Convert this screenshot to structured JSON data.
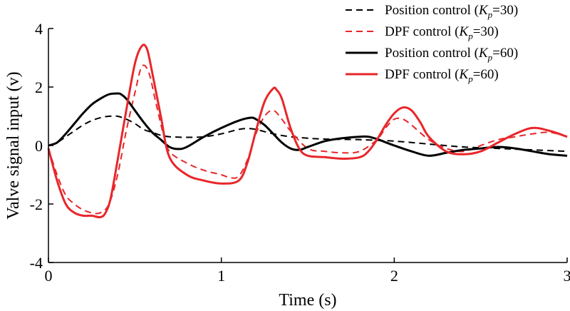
{
  "chart_data": {
    "type": "line",
    "xlabel": "Time (s)",
    "ylabel": "Valve signal input (v)",
    "xlim": [
      0,
      3
    ],
    "ylim": [
      -4,
      4
    ],
    "xticks": [
      "0",
      "1",
      "2",
      "3"
    ],
    "yticks": [
      "-4",
      "-2",
      "0",
      "2",
      "4"
    ],
    "grid": false,
    "legend_position": "top-right",
    "series": [
      {
        "name": "Position control (K_p=30)",
        "legend_parts": [
          "Position control (",
          "K",
          "p",
          "=30)"
        ],
        "color": "#000000",
        "dash": "dashed",
        "x": [
          0,
          0.05,
          0.1,
          0.15,
          0.2,
          0.25,
          0.3,
          0.35,
          0.4,
          0.45,
          0.5,
          0.55,
          0.6,
          0.65,
          0.7,
          0.8,
          0.9,
          1.0,
          1.1,
          1.15,
          1.2,
          1.3,
          1.4,
          1.5,
          1.6,
          1.8,
          2.0,
          2.2,
          2.4,
          2.6,
          2.8,
          3.0
        ],
        "y": [
          0,
          0.1,
          0.3,
          0.5,
          0.7,
          0.85,
          0.95,
          1.0,
          1.0,
          0.9,
          0.75,
          0.55,
          0.45,
          0.35,
          0.3,
          0.28,
          0.3,
          0.4,
          0.55,
          0.58,
          0.55,
          0.4,
          0.3,
          0.25,
          0.22,
          0.2,
          0.15,
          0.05,
          -0.05,
          -0.1,
          -0.15,
          -0.2
        ]
      },
      {
        "name": "DPF control (K_p=30)",
        "legend_parts": [
          "DPF control (",
          "K",
          "p",
          "=30)"
        ],
        "color": "#e8262a",
        "dash": "dashed",
        "x": [
          0,
          0.05,
          0.1,
          0.15,
          0.2,
          0.25,
          0.3,
          0.35,
          0.4,
          0.45,
          0.5,
          0.54,
          0.58,
          0.62,
          0.66,
          0.7,
          0.8,
          0.9,
          1.0,
          1.05,
          1.1,
          1.15,
          1.2,
          1.25,
          1.3,
          1.35,
          1.4,
          1.5,
          1.6,
          1.7,
          1.8,
          1.9,
          1.95,
          2.0,
          2.05,
          2.1,
          2.2,
          2.3,
          2.4,
          2.5,
          2.6,
          2.7,
          2.8,
          2.9,
          3.0
        ],
        "y": [
          -0.1,
          -1.0,
          -1.7,
          -2.0,
          -2.2,
          -2.3,
          -2.3,
          -2.0,
          -1.0,
          0.5,
          1.8,
          2.7,
          2.5,
          1.5,
          0.5,
          -0.2,
          -0.6,
          -0.85,
          -1.0,
          -1.1,
          -1.05,
          -0.5,
          0.4,
          1.0,
          1.2,
          0.9,
          0.5,
          -0.1,
          -0.2,
          -0.25,
          -0.2,
          0.2,
          0.6,
          0.9,
          0.9,
          0.7,
          0.2,
          -0.1,
          -0.2,
          0.0,
          0.2,
          0.3,
          0.4,
          0.45,
          0.3
        ]
      },
      {
        "name": "Position control (K_p=60)",
        "legend_parts": [
          "Position control (",
          "K",
          "p",
          "=60)"
        ],
        "color": "#000000",
        "dash": "solid",
        "x": [
          0,
          0.05,
          0.1,
          0.15,
          0.2,
          0.25,
          0.3,
          0.35,
          0.4,
          0.42,
          0.45,
          0.5,
          0.55,
          0.6,
          0.65,
          0.7,
          0.75,
          0.8,
          0.9,
          1.0,
          1.1,
          1.17,
          1.2,
          1.25,
          1.3,
          1.35,
          1.4,
          1.45,
          1.5,
          1.6,
          1.7,
          1.8,
          1.85,
          1.9,
          2.0,
          2.1,
          2.2,
          2.3,
          2.4,
          2.5,
          2.6,
          2.7,
          2.8,
          2.9,
          3.0
        ],
        "y": [
          0,
          0.1,
          0.4,
          0.75,
          1.1,
          1.4,
          1.6,
          1.75,
          1.78,
          1.75,
          1.6,
          1.2,
          0.8,
          0.45,
          0.2,
          -0.05,
          -0.12,
          -0.05,
          0.3,
          0.6,
          0.85,
          0.95,
          0.9,
          0.7,
          0.4,
          0.1,
          -0.1,
          -0.15,
          -0.05,
          0.15,
          0.25,
          0.3,
          0.3,
          0.22,
          0.0,
          -0.2,
          -0.35,
          -0.25,
          -0.15,
          -0.1,
          -0.05,
          -0.1,
          -0.2,
          -0.3,
          -0.35
        ]
      },
      {
        "name": "DPF control (K_p=60)",
        "legend_parts": [
          "DPF control (",
          "K",
          "p",
          "=60)"
        ],
        "color": "#e8262a",
        "dash": "solid",
        "x": [
          0,
          0.05,
          0.1,
          0.15,
          0.2,
          0.25,
          0.3,
          0.33,
          0.36,
          0.4,
          0.45,
          0.5,
          0.54,
          0.57,
          0.6,
          0.65,
          0.7,
          0.8,
          0.9,
          1.0,
          1.1,
          1.15,
          1.2,
          1.25,
          1.3,
          1.32,
          1.35,
          1.4,
          1.45,
          1.5,
          1.6,
          1.7,
          1.8,
          1.85,
          1.9,
          1.95,
          2.0,
          2.05,
          2.1,
          2.15,
          2.2,
          2.3,
          2.4,
          2.5,
          2.6,
          2.7,
          2.8,
          2.9,
          3.0
        ],
        "y": [
          -0.1,
          -1.2,
          -2.0,
          -2.3,
          -2.4,
          -2.4,
          -2.45,
          -2.3,
          -1.8,
          -0.5,
          1.2,
          2.8,
          3.4,
          3.3,
          2.5,
          1.0,
          -0.4,
          -1.0,
          -1.2,
          -1.3,
          -1.2,
          -0.6,
          0.5,
          1.5,
          1.95,
          1.9,
          1.6,
          0.6,
          -0.1,
          -0.35,
          -0.4,
          -0.45,
          -0.4,
          -0.2,
          0.2,
          0.7,
          1.1,
          1.3,
          1.2,
          0.8,
          0.3,
          -0.2,
          -0.3,
          -0.2,
          0.1,
          0.4,
          0.6,
          0.5,
          0.3
        ]
      }
    ]
  }
}
